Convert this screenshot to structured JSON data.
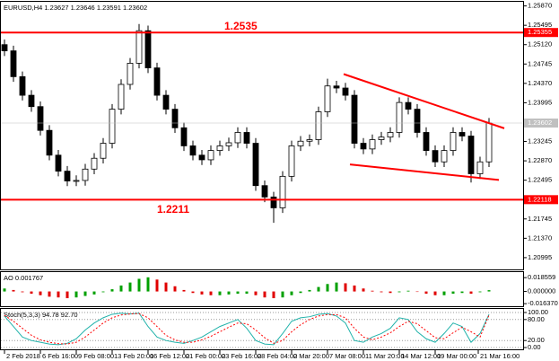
{
  "chart_data": [
    {
      "type": "candlestick",
      "title": "EURUSD,H4 1.23627 1.23646 1.23591 1.23602",
      "xlim": [
        -0.5,
        57.8
      ],
      "ylim": [
        1.2075,
        1.2595
      ],
      "yticks": [
        {
          "value": 1.2587,
          "label": "1.25870"
        },
        {
          "value": 1.25495,
          "label": "1.25495"
        },
        {
          "value": 1.2512,
          "label": "1.25120"
        },
        {
          "value": 1.24745,
          "label": "1.24745"
        },
        {
          "value": 1.2437,
          "label": "1.24370"
        },
        {
          "value": 1.23995,
          "label": "1.23995"
        },
        {
          "value": 1.23245,
          "label": "1.23245"
        },
        {
          "value": 1.2287,
          "label": "1.22870"
        },
        {
          "value": 1.22495,
          "label": "1.22495"
        },
        {
          "value": 1.21745,
          "label": "1.21745"
        },
        {
          "value": 1.2137,
          "label": "1.21370"
        },
        {
          "value": 1.20995,
          "label": "1.20995"
        }
      ],
      "up_color": "#ffffff",
      "down_color": "#000000",
      "outline_color": "#000000",
      "open": [
        1.2512,
        1.25,
        1.245,
        1.2414,
        1.2392,
        1.2346,
        1.2298,
        1.2267,
        1.2248,
        1.2249,
        1.2271,
        1.2292,
        1.2321,
        1.2387,
        1.2435,
        1.2476,
        1.2539,
        1.2467,
        1.2414,
        1.2387,
        1.2351,
        1.2316,
        1.2298,
        1.2289,
        1.2307,
        1.2316,
        1.2322,
        1.2342,
        1.2321,
        1.2239,
        1.2217,
        1.2196,
        1.2257,
        1.2316,
        1.2325,
        1.2328,
        1.2382,
        1.2432,
        1.2428,
        1.2414,
        1.2321,
        1.231,
        1.2328,
        1.2333,
        1.2342,
        1.24,
        1.2387,
        1.2342,
        1.2307,
        1.2285,
        1.2307,
        1.2342,
        1.2335,
        1.2262,
        1.2285
      ],
      "high": [
        1.2522,
        1.251,
        1.246,
        1.2424,
        1.2402,
        1.2356,
        1.2308,
        1.2277,
        1.2259,
        1.2281,
        1.2302,
        1.2331,
        1.2397,
        1.2445,
        1.2486,
        1.2552,
        1.2549,
        1.2477,
        1.2424,
        1.2397,
        1.2361,
        1.2326,
        1.2308,
        1.2317,
        1.2326,
        1.2332,
        1.2352,
        1.2352,
        1.2331,
        1.2249,
        1.2227,
        1.2267,
        1.2326,
        1.2335,
        1.2338,
        1.2392,
        1.2446,
        1.2442,
        1.2438,
        1.2424,
        1.2331,
        1.2338,
        1.2343,
        1.2352,
        1.241,
        1.241,
        1.2397,
        1.2352,
        1.2317,
        1.2317,
        1.2352,
        1.2352,
        1.2345,
        1.2295,
        1.237
      ],
      "low": [
        1.249,
        1.244,
        1.2404,
        1.2382,
        1.2336,
        1.2288,
        1.2257,
        1.2238,
        1.2238,
        1.2239,
        1.2261,
        1.2282,
        1.2311,
        1.2377,
        1.2425,
        1.2466,
        1.2457,
        1.2404,
        1.2377,
        1.2341,
        1.2306,
        1.2288,
        1.2279,
        1.2279,
        1.2297,
        1.2306,
        1.2312,
        1.2311,
        1.2229,
        1.2207,
        1.2167,
        1.2186,
        1.2247,
        1.2306,
        1.2315,
        1.2318,
        1.2372,
        1.2418,
        1.2404,
        1.2311,
        1.23,
        1.23,
        1.2318,
        1.2323,
        1.2332,
        1.2377,
        1.2332,
        1.2297,
        1.2275,
        1.2275,
        1.2297,
        1.2325,
        1.2245,
        1.2252,
        1.2275
      ],
      "close": [
        1.25,
        1.245,
        1.2414,
        1.2392,
        1.2346,
        1.2298,
        1.2267,
        1.2248,
        1.2249,
        1.2271,
        1.2292,
        1.2321,
        1.2387,
        1.2435,
        1.2476,
        1.2539,
        1.2467,
        1.2414,
        1.2387,
        1.2351,
        1.2316,
        1.2298,
        1.2289,
        1.2307,
        1.2316,
        1.2322,
        1.2342,
        1.2321,
        1.2239,
        1.2217,
        1.2196,
        1.2257,
        1.2316,
        1.2325,
        1.2328,
        1.2382,
        1.2432,
        1.2428,
        1.2414,
        1.2321,
        1.231,
        1.2328,
        1.2333,
        1.2342,
        1.24,
        1.2387,
        1.2342,
        1.2307,
        1.2285,
        1.2307,
        1.2342,
        1.2335,
        1.2262,
        1.2285,
        1.23602
      ],
      "levels": [
        {
          "value": 1.25355,
          "label": "1.25355",
          "annotation": "1.2535",
          "color": "#ff0000"
        },
        {
          "value": 1.22118,
          "label": "1.22118",
          "annotation": "1.2211",
          "color": "#ff0000"
        }
      ],
      "last_price": {
        "value": 1.23602,
        "label": "1.23602"
      },
      "trendlines": [
        {
          "x": [
            37.8,
            55.7
          ],
          "values": [
            1.2455,
            1.235
          ],
          "color": "#ff0000"
        },
        {
          "x": [
            38.5,
            55.1
          ],
          "values": [
            1.228,
            1.225
          ],
          "color": "#ff0000"
        }
      ]
    },
    {
      "type": "histogram_oscillator",
      "title": "AO 0.001767",
      "xlim": [
        -0.5,
        57.8
      ],
      "ylim": [
        -0.021,
        0.026
      ],
      "yticks": [
        0.018559,
        {
          "value": 0,
          "label": "0.000000"
        },
        {
          "value": -0.01637,
          "label": "-0.016370"
        }
      ],
      "up_color": "#00a000",
      "down_color": "#e00000",
      "values": [
        0.004,
        0.002,
        -0.001,
        -0.003,
        -0.005,
        -0.007,
        -0.008,
        -0.009,
        -0.008,
        -0.006,
        -0.004,
        -0.001,
        0.003,
        0.008,
        0.012,
        0.017,
        0.019,
        0.016,
        0.012,
        0.007,
        0.002,
        -0.002,
        -0.004,
        -0.005,
        -0.005,
        -0.004,
        -0.003,
        -0.003,
        -0.005,
        -0.008,
        -0.009,
        -0.008,
        -0.005,
        -0.002,
        0.002,
        0.006,
        0.01,
        0.012,
        0.011,
        0.008,
        0.004,
        0.001,
        -0.001,
        -0.002,
        -0.001,
        0.001,
        0.0,
        -0.003,
        -0.005,
        -0.005,
        -0.003,
        -0.002,
        -0.003,
        -0.001,
        0.001767
      ]
    },
    {
      "type": "line",
      "title": "Stoch(5,3,3) 94.78 92.70",
      "xlim": [
        -0.5,
        57.8
      ],
      "ylim": [
        -7.7,
        110.3
      ],
      "yticks": [
        {
          "value": 100,
          "label": "100.00"
        },
        {
          "value": 80,
          "label": "80.00"
        },
        {
          "value": 20,
          "label": "20.00"
        },
        {
          "value": 0,
          "label": "0.00"
        }
      ],
      "xticks": [
        {
          "value": 0,
          "label": "2 Feb 2018"
        },
        {
          "value": 4,
          "label": "6 Feb 16:00"
        },
        {
          "value": 8,
          "label": "9 Feb 08:00"
        },
        {
          "value": 12,
          "label": "13 Feb 20:00"
        },
        {
          "value": 16,
          "label": "16 Feb 12:00"
        },
        {
          "value": 20,
          "label": "21 Feb 00:00"
        },
        {
          "value": 24,
          "label": "23 Feb 16:00"
        },
        {
          "value": 28,
          "label": "28 Feb 04:00"
        },
        {
          "value": 32,
          "label": "2 Mar 20:00"
        },
        {
          "value": 36,
          "label": "7 Mar 08:00"
        },
        {
          "value": 40,
          "label": "11 Mar 20:00"
        },
        {
          "value": 44,
          "label": "14 Mar 12:00"
        },
        {
          "value": 48,
          "label": "19 Mar 00:00"
        },
        {
          "value": 52.8,
          "label": "21 Mar 16:00"
        }
      ],
      "series": [
        {
          "color": "#20b2aa",
          "dashed": false,
          "values": [
            90,
            60,
            30,
            20,
            15,
            10,
            8,
            12,
            25,
            50,
            70,
            85,
            95,
            98,
            96,
            98,
            60,
            30,
            20,
            15,
            12,
            20,
            30,
            45,
            60,
            70,
            80,
            55,
            20,
            10,
            8,
            40,
            75,
            85,
            88,
            95,
            97,
            90,
            70,
            20,
            15,
            30,
            40,
            55,
            85,
            80,
            45,
            25,
            15,
            40,
            70,
            60,
            15,
            40,
            94.78
          ]
        },
        {
          "color": "#ff0000",
          "dashed": true,
          "values": [
            92,
            75,
            55,
            35,
            22,
            15,
            11,
            10,
            15,
            30,
            50,
            70,
            85,
            93,
            96,
            97,
            85,
            60,
            35,
            22,
            15,
            15,
            22,
            32,
            45,
            58,
            70,
            68,
            50,
            28,
            12,
            20,
            45,
            65,
            80,
            90,
            94,
            94,
            85,
            55,
            30,
            22,
            30,
            42,
            60,
            75,
            68,
            48,
            28,
            25,
            42,
            58,
            45,
            30,
            92.7
          ]
        }
      ]
    }
  ]
}
